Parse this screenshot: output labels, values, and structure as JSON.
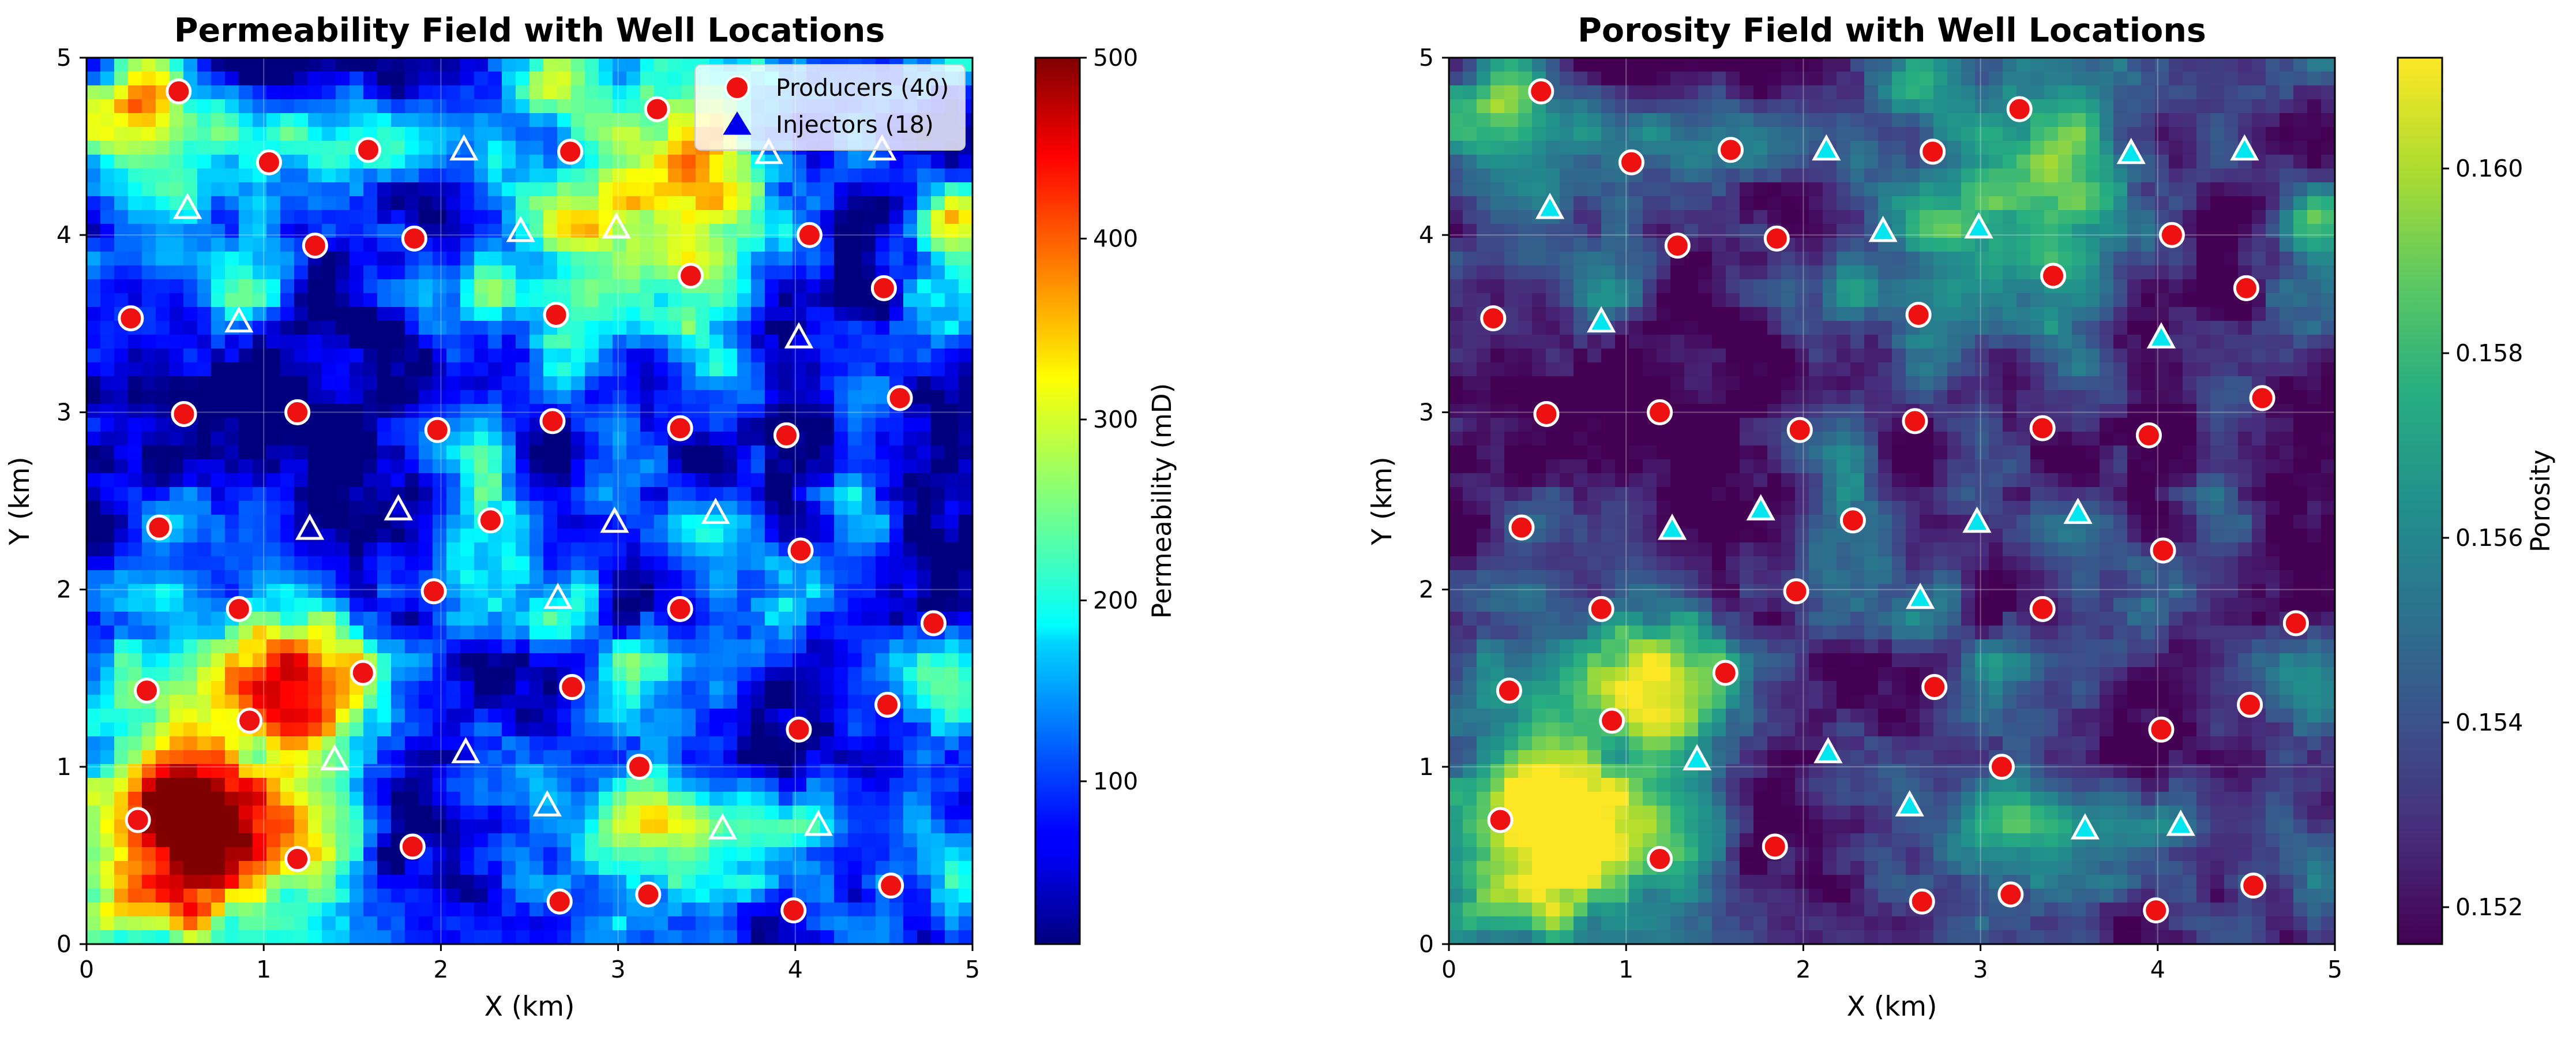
{
  "chart_data": [
    {
      "type": "heatmap",
      "id": "permeability",
      "title": "Permeability Field with Well Locations",
      "xlabel": "X (km)",
      "ylabel": "Y (km)",
      "xlim": [
        0,
        5
      ],
      "ylim": [
        0,
        5
      ],
      "xticks": [
        "0",
        "1",
        "2",
        "3",
        "4",
        "5"
      ],
      "yticks": [
        "0",
        "1",
        "2",
        "3",
        "4",
        "5"
      ],
      "grid": true,
      "colormap": "jet",
      "colorbar": {
        "label": "Permeability (mD)",
        "range": [
          10,
          500
        ],
        "ticks": [
          "100",
          "200",
          "300",
          "400",
          "500"
        ],
        "tick_values": [
          100,
          200,
          300,
          400,
          500
        ]
      },
      "field_description": "high permeability clusters in lower-left and upper-right, low background elsewhere",
      "legend": {
        "position": "upper-right",
        "entries": [
          "Producers (40)",
          "Injectors (18)"
        ]
      },
      "marker_style": {
        "producer_fill": "#ee1111",
        "producer_edge": "#ffffff",
        "injector_fill": "none",
        "injector_edge": "#ffffff"
      }
    },
    {
      "type": "heatmap",
      "id": "porosity",
      "title": "Porosity Field with Well Locations",
      "xlabel": "X (km)",
      "ylabel": "Y (km)",
      "xlim": [
        0,
        5
      ],
      "ylim": [
        0,
        5
      ],
      "xticks": [
        "0",
        "1",
        "2",
        "3",
        "4",
        "5"
      ],
      "yticks": [
        "0",
        "1",
        "2",
        "3",
        "4",
        "5"
      ],
      "grid": true,
      "colormap": "viridis",
      "colorbar": {
        "label": "Porosity",
        "range": [
          0.1516,
          0.1612
        ],
        "ticks": [
          "0.152",
          "0.154",
          "0.156",
          "0.158",
          "0.160"
        ],
        "tick_values": [
          0.152,
          0.154,
          0.156,
          0.158,
          0.16
        ]
      },
      "field_description": "high porosity in lower-left and upper-right, low porosity background",
      "marker_style": {
        "producer_fill": "#ee1111",
        "producer_edge": "#ffffff",
        "injector_fill": "#00e5ee",
        "injector_edge": "#ffffff"
      }
    }
  ],
  "wells": {
    "producers": [
      [
        0.52,
        4.81
      ],
      [
        1.03,
        4.41
      ],
      [
        1.59,
        4.48
      ],
      [
        2.73,
        4.47
      ],
      [
        3.22,
        4.71
      ],
      [
        1.29,
        3.94
      ],
      [
        1.85,
        3.98
      ],
      [
        4.08,
        4.0
      ],
      [
        3.41,
        3.77
      ],
      [
        0.25,
        3.53
      ],
      [
        2.65,
        3.55
      ],
      [
        4.5,
        3.7
      ],
      [
        0.55,
        2.99
      ],
      [
        1.19,
        3.0
      ],
      [
        1.98,
        2.9
      ],
      [
        2.63,
        2.95
      ],
      [
        3.35,
        2.91
      ],
      [
        3.95,
        2.87
      ],
      [
        4.59,
        3.08
      ],
      [
        0.41,
        2.35
      ],
      [
        2.28,
        2.39
      ],
      [
        4.03,
        2.22
      ],
      [
        0.86,
        1.89
      ],
      [
        1.96,
        1.99
      ],
      [
        3.35,
        1.89
      ],
      [
        4.78,
        1.81
      ],
      [
        0.34,
        1.43
      ],
      [
        0.92,
        1.26
      ],
      [
        1.56,
        1.53
      ],
      [
        2.74,
        1.45
      ],
      [
        4.02,
        1.21
      ],
      [
        4.52,
        1.35
      ],
      [
        0.29,
        0.7
      ],
      [
        1.19,
        0.48
      ],
      [
        1.84,
        0.55
      ],
      [
        3.12,
        1.0
      ],
      [
        2.67,
        0.24
      ],
      [
        3.17,
        0.28
      ],
      [
        3.99,
        0.19
      ],
      [
        4.54,
        0.33
      ]
    ],
    "injectors": [
      [
        0.57,
        4.15
      ],
      [
        2.13,
        4.48
      ],
      [
        3.85,
        4.46
      ],
      [
        4.49,
        4.48
      ],
      [
        0.86,
        3.51
      ],
      [
        2.45,
        4.02
      ],
      [
        2.99,
        4.04
      ],
      [
        4.02,
        3.42
      ],
      [
        1.26,
        2.34
      ],
      [
        1.76,
        2.45
      ],
      [
        2.98,
        2.38
      ],
      [
        3.55,
        2.43
      ],
      [
        2.66,
        1.95
      ],
      [
        1.4,
        1.04
      ],
      [
        2.14,
        1.08
      ],
      [
        2.6,
        0.78
      ],
      [
        3.59,
        0.65
      ],
      [
        4.13,
        0.67
      ]
    ]
  }
}
